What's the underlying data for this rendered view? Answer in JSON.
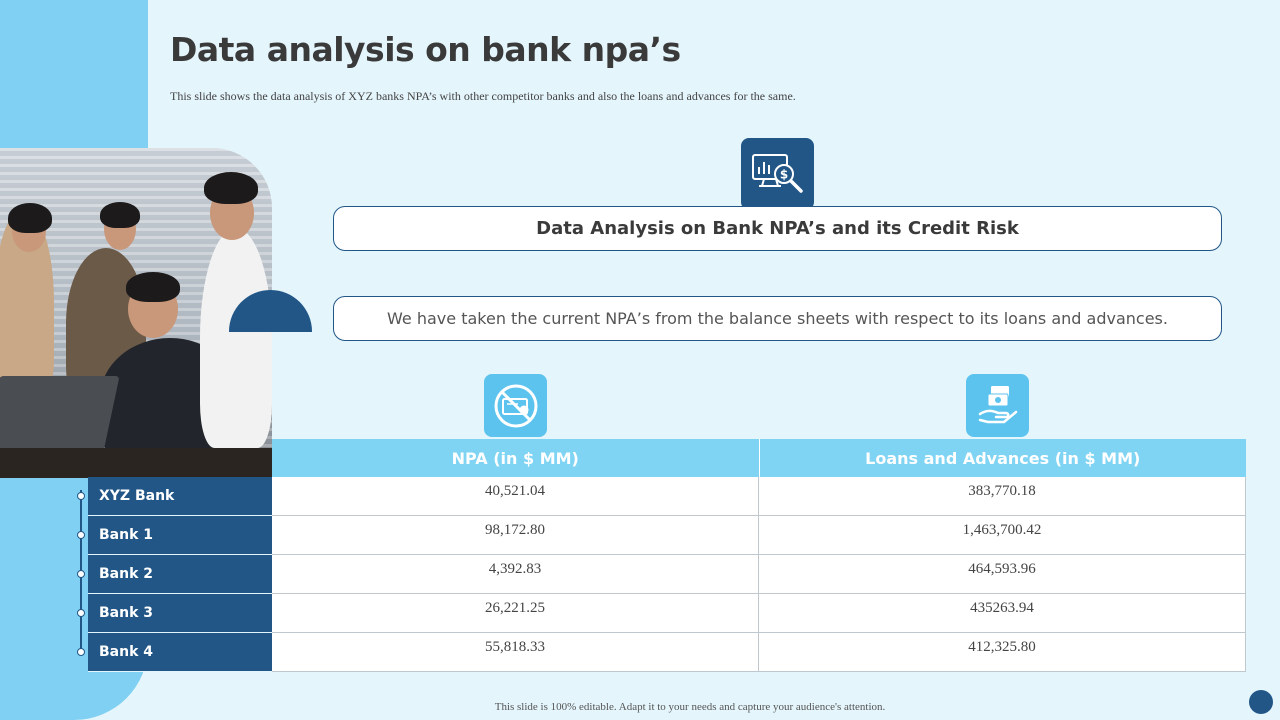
{
  "slide": {
    "title": "Data analysis on bank npa’s",
    "subtitle": "This slide shows the data analysis of XYZ  banks NPA’s with other competitor banks and also the loans and advances for the same.",
    "heading": "Data Analysis on Bank NPA’s and its Credit Risk",
    "description": "We have taken the current NPA’s from the balance sheets with respect to its loans and advances.",
    "footer": "This slide is 100% editable.  Adapt it to your needs and capture your audience's  attention."
  },
  "icons": {
    "top": "data-analysis-magnifier-icon",
    "npa": "no-money-icon",
    "loans": "hand-cash-icon"
  },
  "colors": {
    "background": "#e4f5fc",
    "dark_blue": "#215687",
    "light_blue": "#7fd4f4",
    "accent_blue": "#5cc3ee"
  },
  "table": {
    "headers": [
      "NPA (in $ MM)",
      "Loans and Advances (in $ MM)"
    ],
    "rows": [
      {
        "bank": "XYZ Bank",
        "npa": "40,521.04",
        "loans": "383,770.18"
      },
      {
        "bank": "Bank 1",
        "npa": "98,172.80",
        "loans": "1,463,700.42"
      },
      {
        "bank": "Bank 2",
        "npa": "4,392.83",
        "loans": "464,593.96"
      },
      {
        "bank": "Bank 3",
        "npa": "26,221.25",
        "loans": "435263.94"
      },
      {
        "bank": "Bank 4",
        "npa": "55,818.33",
        "loans": "412,325.80"
      }
    ]
  }
}
